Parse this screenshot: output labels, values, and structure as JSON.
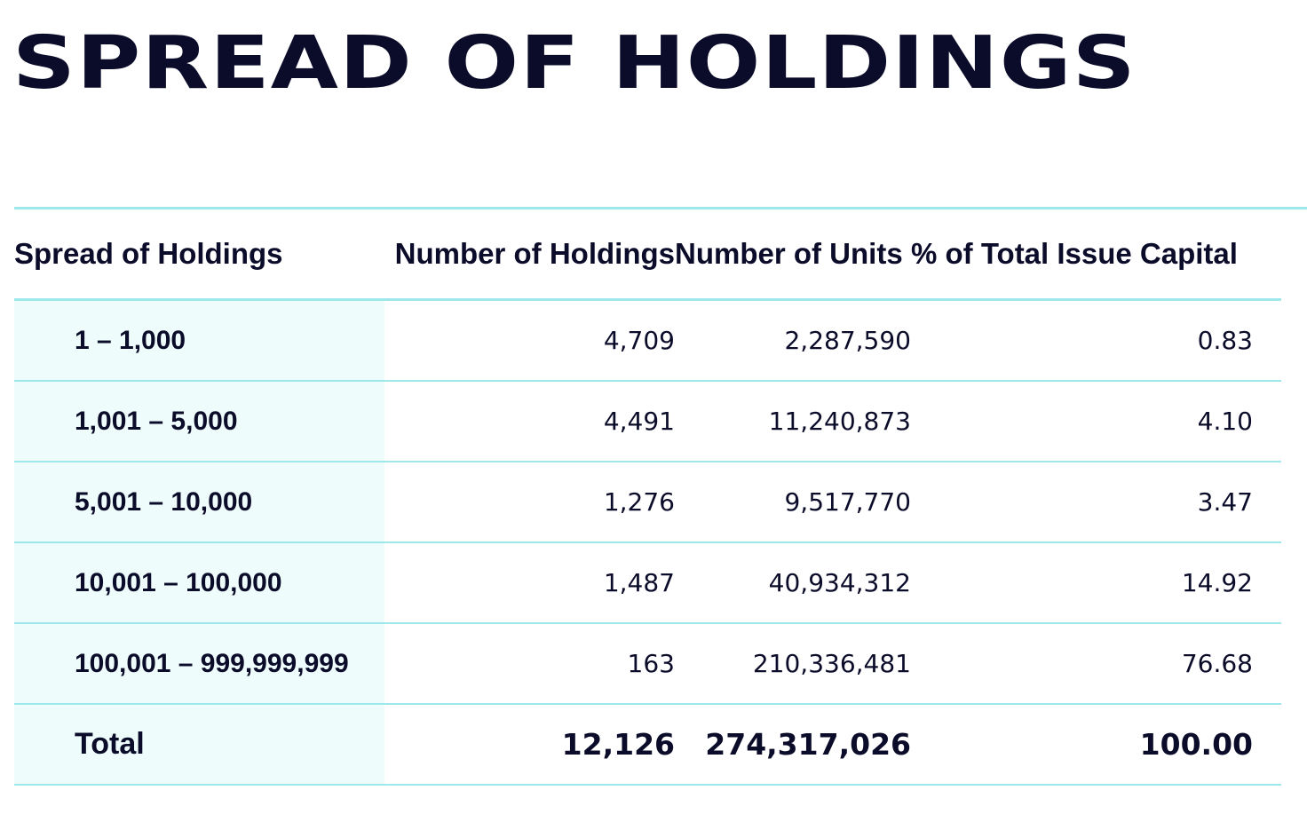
{
  "page": {
    "title": "SPREAD OF HOLDINGS"
  },
  "colors": {
    "text": "#0b0c2a",
    "rule": "#9ee7ea",
    "first_column_bg": "#effcfc"
  },
  "table": {
    "headers": [
      "Spread of Holdings",
      "Number of Holdings",
      "Number of Units",
      "% of Total Issue Capital"
    ],
    "rows": [
      {
        "range": "1 – 1,000",
        "holdings": "4,709",
        "units": "2,287,590",
        "percent": "0.83"
      },
      {
        "range": "1,001 – 5,000",
        "holdings": "4,491",
        "units": "11,240,873",
        "percent": "4.10"
      },
      {
        "range": "5,001 – 10,000",
        "holdings": "1,276",
        "units": "9,517,770",
        "percent": "3.47"
      },
      {
        "range": "10,001 – 100,000",
        "holdings": "1,487",
        "units": "40,934,312",
        "percent": "14.92"
      },
      {
        "range": "100,001 – 999,999,999",
        "holdings": "163",
        "units": "210,336,481",
        "percent": "76.68"
      }
    ],
    "total": {
      "label": "Total",
      "holdings": "12,126",
      "units": "274,317,026",
      "percent": "100.00"
    }
  }
}
